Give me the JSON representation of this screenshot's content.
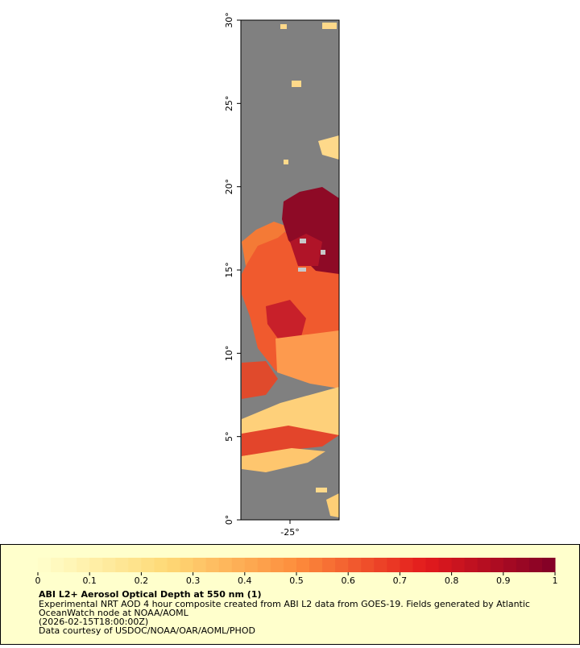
{
  "map": {
    "latlim": [
      0,
      30
    ],
    "lonlim": [
      -28,
      -22
    ],
    "lat_ticks": [
      {
        "value": 0,
        "label": "0°"
      },
      {
        "value": 5,
        "label": "5°"
      },
      {
        "value": 10,
        "label": "10°"
      },
      {
        "value": 15,
        "label": "15°"
      },
      {
        "value": 20,
        "label": "20°"
      },
      {
        "value": 25,
        "label": "25°"
      },
      {
        "value": 30,
        "label": "30°"
      }
    ],
    "lon_ticks": [
      {
        "value": -25,
        "label": "-25°"
      }
    ]
  },
  "legend": {
    "title": "ABI L2+ Aerosol Optical Depth at 550 nm (1)",
    "range": [
      0,
      1
    ],
    "ticks": [
      0,
      0.1,
      0.2,
      0.3,
      0.4,
      0.5,
      0.6,
      0.7,
      0.8,
      0.9,
      1
    ],
    "lines": [
      "Experimental NRT AOD 4 hour composite created from ABI L2 data from GOES-19. Fields generated by Atlantic",
      "OceanWatch node at NOAA/AOML",
      "(2026-02-15T18:00:00Z)",
      "Data courtesy of USDOC/NOAA/OAR/AOML/PHOD"
    ]
  }
}
